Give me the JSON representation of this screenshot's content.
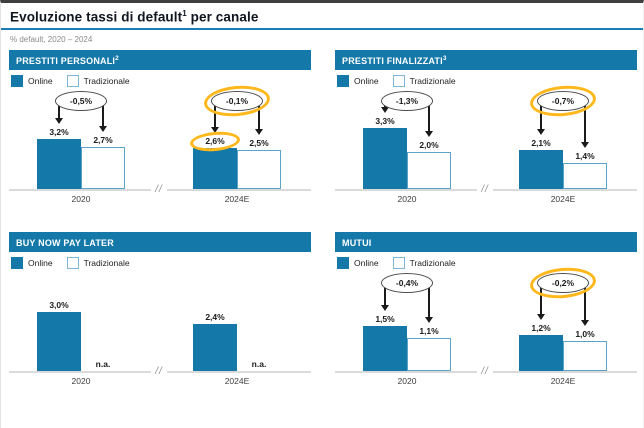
{
  "page": {
    "title_main": "Evoluzione tassi di default",
    "title_sup": "1",
    "title_tail": " per canale",
    "subtitle": "% default, 2020 – 2024"
  },
  "legend": {
    "online": "Online",
    "traditional": "Tradizionale"
  },
  "colors": {
    "online_bar": "#1478a8",
    "traditional_border": "#5ba3c9",
    "header_bg": "#1478a8",
    "title_rule": "#1e7cb5",
    "highlight": "#ffb81c",
    "axis_line": "#dadada"
  },
  "chart_data": [
    {
      "type": "bar",
      "title": "PRESTITI PERSONALI",
      "title_sup": "2",
      "categories": [
        "2020",
        "2024E"
      ],
      "series": [
        {
          "name": "Online",
          "values": [
            3.2,
            2.6
          ],
          "labels": [
            "3,2%",
            "2,6%"
          ]
        },
        {
          "name": "Tradizionale",
          "values": [
            2.7,
            2.5
          ],
          "labels": [
            "2,7%",
            "2,5%"
          ]
        }
      ],
      "deltas": [
        {
          "category": "2020",
          "label": "-0,5%",
          "highlighted": false
        },
        {
          "category": "2024E",
          "label": "-0,1%",
          "highlighted": true
        }
      ],
      "highlighted_value_labels": [
        {
          "category": "2024E",
          "series": "Online"
        }
      ],
      "ylim": [
        0,
        4.2
      ],
      "axis_break": true,
      "grid": false,
      "legend_position": "top-left"
    },
    {
      "type": "bar",
      "title": "PRESTITI FINALIZZATI",
      "title_sup": "3",
      "categories": [
        "2020",
        "2024E"
      ],
      "series": [
        {
          "name": "Online",
          "values": [
            3.3,
            2.1
          ],
          "labels": [
            "3,3%",
            "2,1%"
          ]
        },
        {
          "name": "Tradizionale",
          "values": [
            2.0,
            1.4
          ],
          "labels": [
            "2,0%",
            "1,4%"
          ]
        }
      ],
      "deltas": [
        {
          "category": "2020",
          "label": "-1,3%",
          "highlighted": false
        },
        {
          "category": "2024E",
          "label": "-0,7%",
          "highlighted": true
        }
      ],
      "highlighted_value_labels": [],
      "ylim": [
        0,
        3.6
      ],
      "axis_break": true,
      "grid": false,
      "legend_position": "top-left"
    },
    {
      "type": "bar",
      "title": "BUY NOW PAY LATER",
      "title_sup": "",
      "categories": [
        "2020",
        "2024E"
      ],
      "series": [
        {
          "name": "Online",
          "values": [
            3.0,
            2.4
          ],
          "labels": [
            "3,0%",
            "2,4%"
          ]
        },
        {
          "name": "Tradizionale",
          "values": [
            null,
            null
          ],
          "labels": [
            "n.a.",
            "n.a."
          ]
        }
      ],
      "deltas": [],
      "highlighted_value_labels": [],
      "ylim": [
        0,
        3.35
      ],
      "axis_break": true,
      "grid": false,
      "legend_position": "top-left"
    },
    {
      "type": "bar",
      "title": "MUTUI",
      "title_sup": "",
      "categories": [
        "2020",
        "2024E"
      ],
      "series": [
        {
          "name": "Online",
          "values": [
            1.5,
            1.2
          ],
          "labels": [
            "1,5%",
            "1,2%"
          ]
        },
        {
          "name": "Tradizionale",
          "values": [
            1.1,
            1.0
          ],
          "labels": [
            "1,1%",
            "1,0%"
          ]
        }
      ],
      "deltas": [
        {
          "category": "2020",
          "label": "-0,4%",
          "highlighted": false
        },
        {
          "category": "2024E",
          "label": "-0,2%",
          "highlighted": true
        }
      ],
      "highlighted_value_labels": [],
      "ylim": [
        0,
        2.2
      ],
      "axis_break": true,
      "grid": false,
      "legend_position": "top-left"
    }
  ]
}
